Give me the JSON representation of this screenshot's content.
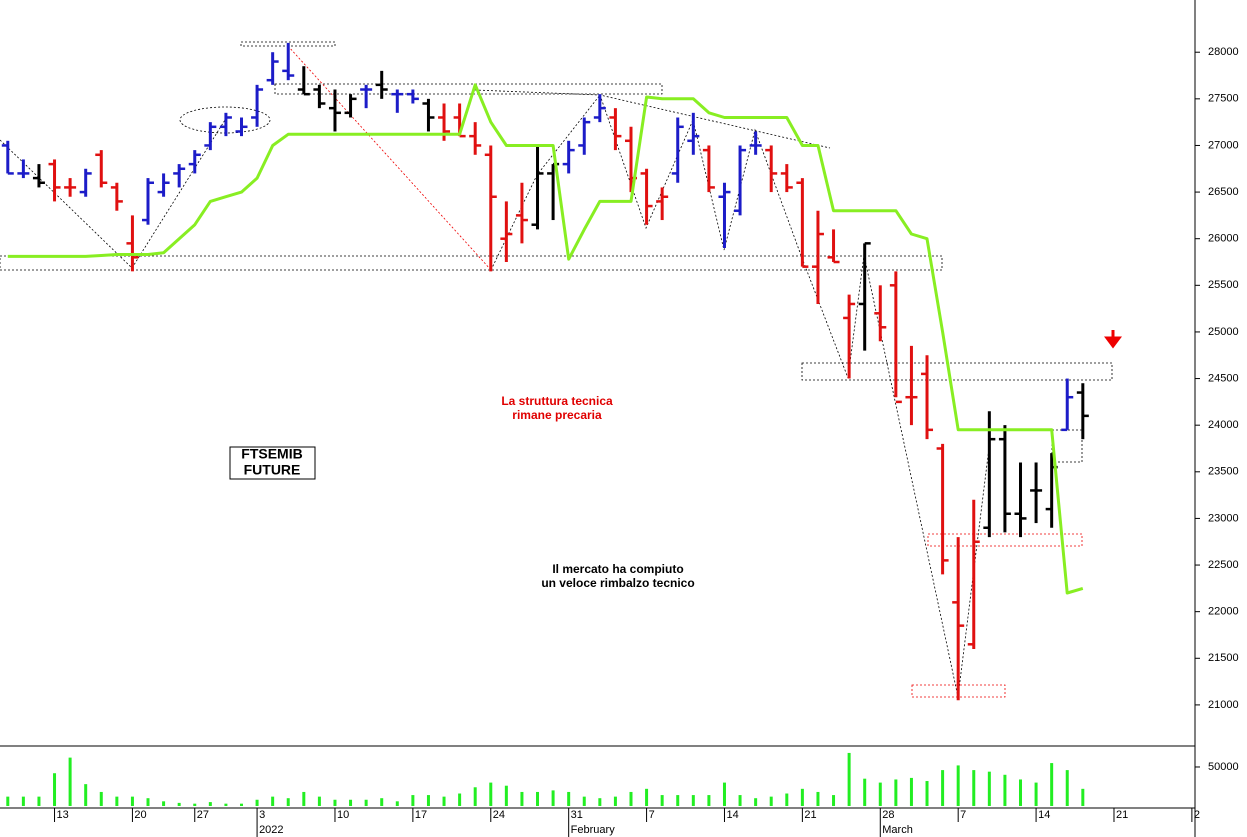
{
  "chart_data": {
    "type": "ohlc",
    "xlim": [
      -0.5,
      76.2
    ],
    "ylim": [
      20570,
      28560
    ],
    "yticks": [
      21000,
      21500,
      22000,
      22500,
      23000,
      23500,
      24000,
      24500,
      25000,
      25500,
      26000,
      26500,
      27000,
      27500,
      28000
    ],
    "xticks": [
      {
        "value": 3,
        "label": "13"
      },
      {
        "value": 8,
        "label": "20"
      },
      {
        "value": 12,
        "label": "27"
      },
      {
        "value": 16,
        "label": "3"
      },
      {
        "value": 21,
        "label": "10"
      },
      {
        "value": 26,
        "label": "17"
      },
      {
        "value": 31,
        "label": "24"
      },
      {
        "value": 36,
        "label": "31"
      },
      {
        "value": 41,
        "label": "7"
      },
      {
        "value": 46,
        "label": "14"
      },
      {
        "value": 51,
        "label": "21"
      },
      {
        "value": 56,
        "label": "28"
      },
      {
        "value": 61,
        "label": "7"
      },
      {
        "value": 66,
        "label": "14"
      },
      {
        "value": 71,
        "label": "21"
      },
      {
        "value": 76,
        "label": "2"
      }
    ],
    "month_labels": [
      {
        "value": 16,
        "label": "2022"
      },
      {
        "value": 36,
        "label": "February"
      },
      {
        "value": 56,
        "label": "March"
      }
    ],
    "open": [
      27000,
      26700,
      26650,
      26800,
      26550,
      26500,
      26900,
      26550,
      25950,
      26200,
      26500,
      26700,
      26800,
      27000,
      27200,
      27150,
      27300,
      27700,
      27800,
      27600,
      27600,
      27400,
      27350,
      27600,
      27650,
      27550,
      27550,
      27450,
      27300,
      27300,
      27100,
      26900,
      26000,
      26250,
      26150,
      26700,
      26800,
      27000,
      27300,
      27300,
      27050,
      26700,
      26400,
      26700,
      27050,
      26950,
      26450,
      26300,
      27000,
      26950,
      26700,
      26600,
      25700,
      25800,
      25150,
      25300,
      25200,
      25500,
      24300,
      24550,
      23750,
      22100,
      21650,
      22900,
      23850,
      23050,
      23300,
      23100,
      23950,
      24350
    ],
    "high": [
      27050,
      26850,
      26800,
      26850,
      26650,
      26750,
      26950,
      26600,
      26250,
      26650,
      26700,
      26800,
      26950,
      27250,
      27350,
      27300,
      27650,
      28000,
      28100,
      27850,
      27650,
      27600,
      27550,
      27650,
      27800,
      27600,
      27600,
      27500,
      27450,
      27450,
      27250,
      27000,
      26400,
      26600,
      27000,
      26800,
      27050,
      27300,
      27550,
      27400,
      27200,
      26750,
      26550,
      27300,
      27350,
      27000,
      26600,
      27000,
      27150,
      27000,
      26800,
      26650,
      26300,
      26100,
      25400,
      25950,
      25500,
      25650,
      24850,
      24750,
      23800,
      22800,
      23200,
      24150,
      24000,
      23600,
      23600,
      23700,
      24500,
      24450
    ],
    "low": [
      26700,
      26650,
      26550,
      26400,
      26450,
      26450,
      26550,
      26300,
      25650,
      26150,
      26450,
      26550,
      26700,
      26950,
      27100,
      27100,
      27200,
      27650,
      27700,
      27550,
      27400,
      27150,
      27300,
      27400,
      27500,
      27350,
      27450,
      27150,
      27050,
      27100,
      26900,
      25650,
      25750,
      25950,
      26100,
      26200,
      26700,
      26900,
      27250,
      26950,
      26500,
      26150,
      26200,
      26600,
      26900,
      26500,
      25900,
      26250,
      26900,
      26500,
      26500,
      25700,
      25300,
      25750,
      24500,
      24800,
      24900,
      24300,
      24000,
      23850,
      22400,
      21050,
      21600,
      22800,
      22850,
      22800,
      22950,
      22900,
      23950,
      23850
    ],
    "close": [
      26700,
      26700,
      26600,
      26550,
      26550,
      26700,
      26600,
      26400,
      25800,
      26600,
      26600,
      26750,
      26900,
      27200,
      27300,
      27200,
      27600,
      27900,
      27750,
      27550,
      27450,
      27350,
      27500,
      27600,
      27600,
      27550,
      27500,
      27300,
      27150,
      27100,
      27000,
      26450,
      26050,
      26200,
      26700,
      26800,
      26950,
      27250,
      27400,
      27100,
      26650,
      26350,
      26450,
      27200,
      27100,
      26550,
      26500,
      26950,
      27000,
      26700,
      26550,
      25700,
      26050,
      25750,
      25300,
      25950,
      25050,
      24250,
      24300,
      23950,
      22550,
      21850,
      22750,
      23850,
      23050,
      23000,
      23300,
      23550,
      24300,
      24100
    ],
    "colors": [
      "#1c1cc8",
      "#1c1cc8",
      "#000000",
      "#e01010",
      "#e01010",
      "#1c1cc8",
      "#e01010",
      "#e01010",
      "#e01010",
      "#1c1cc8",
      "#1c1cc8",
      "#1c1cc8",
      "#1c1cc8",
      "#1c1cc8",
      "#1c1cc8",
      "#1c1cc8",
      "#1c1cc8",
      "#1c1cc8",
      "#1c1cc8",
      "#000000",
      "#000000",
      "#000000",
      "#000000",
      "#1c1cc8",
      "#000000",
      "#1c1cc8",
      "#1c1cc8",
      "#000000",
      "#e01010",
      "#e01010",
      "#e01010",
      "#e01010",
      "#e01010",
      "#e01010",
      "#000000",
      "#000000",
      "#1c1cc8",
      "#1c1cc8",
      "#1c1cc8",
      "#e01010",
      "#e01010",
      "#e01010",
      "#e01010",
      "#1c1cc8",
      "#1c1cc8",
      "#e01010",
      "#1c1cc8",
      "#1c1cc8",
      "#1c1cc8",
      "#e01010",
      "#e01010",
      "#e01010",
      "#e01010",
      "#e01010",
      "#e01010",
      "#000000",
      "#e01010",
      "#e01010",
      "#e01010",
      "#e01010",
      "#e01010",
      "#e01010",
      "#e01010",
      "#000000",
      "#000000",
      "#000000",
      "#000000",
      "#000000",
      "#1c1cc8",
      "#000000"
    ],
    "line": {
      "color": "#88ee22",
      "values": [
        25810,
        25810,
        25810,
        25810,
        25810,
        25810,
        25820,
        25830,
        25830,
        25830,
        25850,
        26000,
        26150,
        26400,
        26450,
        26500,
        26650,
        27000,
        27120,
        27120,
        27120,
        27120,
        27120,
        27120,
        27120,
        27120,
        27120,
        27120,
        27120,
        27120,
        27650,
        27250,
        27000,
        27000,
        27000,
        27000,
        25780,
        26100,
        26400,
        26400,
        26400,
        27520,
        27500,
        27500,
        27500,
        27350,
        27300,
        27300,
        27300,
        27300,
        27300,
        27000,
        27000,
        26300,
        26300,
        26300,
        26300,
        26300,
        26050,
        26000,
        25000,
        23950,
        23950,
        23950,
        23950,
        23950,
        23950,
        23950,
        22200,
        22250
      ]
    },
    "volume": {
      "type": "bar",
      "color": "#22ee22",
      "ylim": [
        0,
        75600
      ],
      "yticks": [
        50000
      ],
      "values": [
        12000,
        12000,
        12000,
        42000,
        62000,
        28000,
        18000,
        12000,
        12000,
        10000,
        6000,
        4000,
        3000,
        5000,
        3000,
        3000,
        8000,
        12000,
        10000,
        18000,
        12000,
        8000,
        8000,
        8000,
        10000,
        6000,
        14000,
        14000,
        12000,
        16000,
        24000,
        30000,
        26000,
        18000,
        18000,
        20000,
        18000,
        12000,
        10000,
        12000,
        18000,
        22000,
        14000,
        14000,
        14000,
        14000,
        30000,
        14000,
        10000,
        12000,
        16000,
        22000,
        18000,
        14000,
        68000,
        35000,
        30000,
        34000,
        36000,
        32000,
        46000,
        52000,
        46000,
        44000,
        40000,
        34000,
        30000,
        55000,
        46000,
        22000
      ]
    },
    "annotations": [
      {
        "lines": [
          "La struttura tecnica",
          "rimane precaria"
        ],
        "color": "#e00000"
      },
      {
        "lines": [
          "Il mercato ha compiuto",
          "un veloce rimbalzo tecnico"
        ],
        "color": "#000000"
      }
    ],
    "label_box": [
      "FTSEMIB",
      "FUTURE"
    ]
  }
}
